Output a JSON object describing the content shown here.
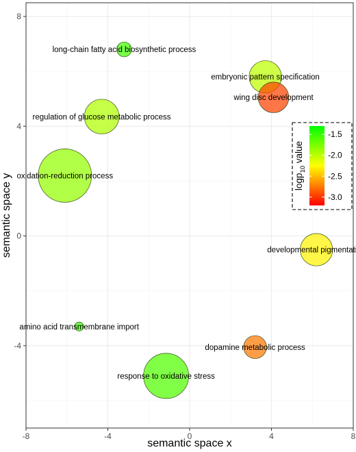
{
  "chart_data": {
    "type": "scatter",
    "xlabel": "semantic space x",
    "ylabel": "semantic space y",
    "xlim": [
      -8,
      8
    ],
    "ylim": [
      -7,
      8.5
    ],
    "x_ticks": [
      -8,
      -4,
      0,
      4,
      8
    ],
    "x_tick_labels": [
      "-8",
      "-4",
      "0",
      "4",
      "8"
    ],
    "y_ticks": [
      -4,
      0,
      4,
      8
    ],
    "y_tick_labels": [
      "-4",
      "0",
      "4",
      "8"
    ],
    "grid": true,
    "legend": {
      "placement": "right",
      "title_main": "logp",
      "title_sub": "10",
      "title_rest": " value",
      "min": -3.2,
      "max": -1.3,
      "ticks": [
        -1.5,
        -2.0,
        -2.5,
        -3.0
      ],
      "tick_labels": [
        "-1.5",
        "-2.0",
        "-2.5",
        "-3.0"
      ],
      "colors": {
        "low": "#ff0000",
        "mid": "#ffff00",
        "high": "#00ff00"
      }
    },
    "points": [
      {
        "label": "long-chain fatty acid biosynthetic process",
        "x": -3.2,
        "y": 6.8,
        "size": 1.5,
        "logp": -1.55
      },
      {
        "label": "embryonic pattern specification",
        "x": 3.7,
        "y": 5.8,
        "size": 3.0,
        "logp": -2.0
      },
      {
        "label": "wing disc development",
        "x": 4.1,
        "y": 5.05,
        "size": 2.85,
        "logp": -2.95
      },
      {
        "label": "regulation of glucose metabolic process",
        "x": -4.3,
        "y": 4.35,
        "size": 3.2,
        "logp": -1.95
      },
      {
        "label": "oxidation-reduction process",
        "x": -6.1,
        "y": 2.2,
        "size": 4.8,
        "logp": -1.85
      },
      {
        "label": "developmental pigmentation",
        "x": 6.2,
        "y": -0.5,
        "size": 3.0,
        "logp": -2.3
      },
      {
        "label": "amino acid transmembrane import",
        "x": -5.4,
        "y": -3.3,
        "size": 1.0,
        "logp": -1.5
      },
      {
        "label": "dopamine metabolic process",
        "x": 3.2,
        "y": -4.05,
        "size": 2.2,
        "logp": -2.75
      },
      {
        "label": "response to oxidative stress",
        "x": -1.15,
        "y": -5.1,
        "size": 4.1,
        "logp": -1.6
      }
    ]
  }
}
